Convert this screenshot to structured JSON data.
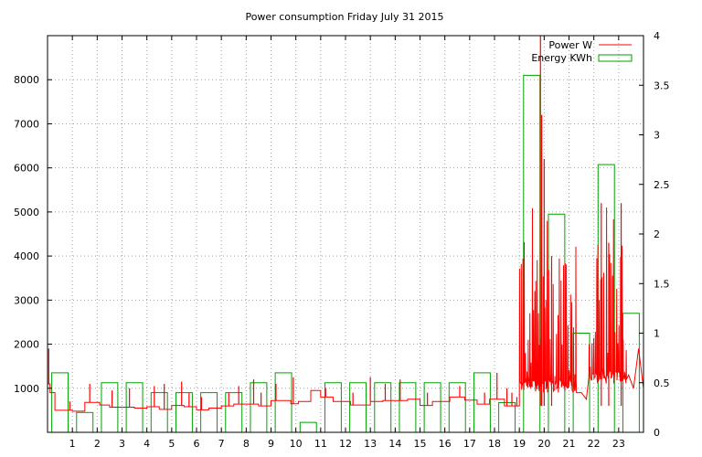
{
  "chart_data": {
    "type": "line",
    "title": "Power consumption Friday July 31 2015",
    "xlabel": "",
    "ylabel": "",
    "y2label": "",
    "xlim": [
      0,
      24
    ],
    "ylim": [
      0,
      9000
    ],
    "y2lim": [
      0,
      4
    ],
    "x_ticks": [
      1,
      2,
      3,
      4,
      5,
      6,
      7,
      8,
      9,
      10,
      11,
      12,
      13,
      14,
      15,
      16,
      17,
      18,
      19,
      20,
      21,
      22,
      23
    ],
    "y_ticks": [
      1000,
      2000,
      3000,
      4000,
      5000,
      6000,
      7000,
      8000
    ],
    "y2_ticks": [
      0,
      0.5,
      1,
      1.5,
      2,
      2.5,
      3,
      3.5,
      4
    ],
    "y2_tick_labels": [
      "0",
      "0.5",
      "1",
      "1.5",
      "2",
      "2.5",
      "3",
      "3.5",
      "4"
    ],
    "grid": true,
    "legend_position": "top-right",
    "colors": {
      "power": "#ff0000",
      "energy": "#00a000",
      "grid": "#a0a0a0",
      "axis": "#000000"
    },
    "series": [
      {
        "name": "Power W",
        "axis": "left",
        "style": "line",
        "baseline_steps": [
          [
            0.0,
            1100
          ],
          [
            0.1,
            900
          ],
          [
            0.3,
            500
          ],
          [
            1.0,
            480
          ],
          [
            1.5,
            680
          ],
          [
            2.1,
            620
          ],
          [
            2.5,
            570
          ],
          [
            3.5,
            550
          ],
          [
            4.0,
            580
          ],
          [
            4.5,
            520
          ],
          [
            5.0,
            610
          ],
          [
            5.5,
            580
          ],
          [
            6.0,
            510
          ],
          [
            6.5,
            550
          ],
          [
            7.0,
            600
          ],
          [
            7.5,
            640
          ],
          [
            8.5,
            600
          ],
          [
            9.0,
            720
          ],
          [
            9.8,
            650
          ],
          [
            10.1,
            700
          ],
          [
            10.6,
            950
          ],
          [
            11.0,
            800
          ],
          [
            11.5,
            700
          ],
          [
            12.2,
            620
          ],
          [
            13.0,
            700
          ],
          [
            13.5,
            720
          ],
          [
            14.5,
            750
          ],
          [
            15.0,
            610
          ],
          [
            15.5,
            700
          ],
          [
            16.2,
            800
          ],
          [
            16.8,
            730
          ],
          [
            17.3,
            640
          ],
          [
            17.8,
            750
          ],
          [
            18.4,
            600
          ],
          [
            19.0,
            600
          ]
        ],
        "spikes": [
          [
            0.05,
            1900
          ],
          [
            0.9,
            700
          ],
          [
            1.7,
            1100
          ],
          [
            2.6,
            950
          ],
          [
            3.3,
            1000
          ],
          [
            4.3,
            1050
          ],
          [
            4.7,
            1100
          ],
          [
            5.4,
            1150
          ],
          [
            5.7,
            900
          ],
          [
            6.2,
            800
          ],
          [
            7.3,
            900
          ],
          [
            7.7,
            1050
          ],
          [
            8.3,
            1200
          ],
          [
            8.6,
            900
          ],
          [
            9.2,
            1100
          ],
          [
            9.9,
            1250
          ],
          [
            11.2,
            1000
          ],
          [
            12.3,
            900
          ],
          [
            13.0,
            1250
          ],
          [
            13.6,
            1100
          ],
          [
            14.2,
            1200
          ],
          [
            15.3,
            900
          ],
          [
            16.6,
            1050
          ],
          [
            17.6,
            900
          ],
          [
            18.1,
            1350
          ],
          [
            18.5,
            1000
          ],
          [
            18.7,
            900
          ],
          [
            18.9,
            800
          ]
        ],
        "burst_ranges": [
          [
            19.0,
            21.3,
            900,
            5200
          ],
          [
            21.8,
            23.3,
            1100,
            5200
          ]
        ],
        "peaks": [
          [
            19.85,
            9000
          ],
          [
            19.9,
            7200
          ],
          [
            20.0,
            6200
          ],
          [
            20.3,
            4000
          ],
          [
            22.3,
            5200
          ],
          [
            22.6,
            4300
          ],
          [
            23.1,
            5200
          ]
        ],
        "tail_steps": [
          [
            21.3,
            900
          ],
          [
            21.5,
            900
          ],
          [
            21.7,
            750
          ],
          [
            23.4,
            1300
          ],
          [
            23.6,
            1000
          ],
          [
            23.8,
            1900
          ],
          [
            24.0,
            1000
          ]
        ]
      },
      {
        "name": "Energy KWh",
        "axis": "right",
        "style": "hourly-boxes",
        "x": [
          0,
          1,
          2,
          3,
          4,
          5,
          6,
          7,
          8,
          9,
          10,
          11,
          12,
          13,
          14,
          15,
          16,
          17,
          18,
          19,
          20,
          21,
          22,
          23
        ],
        "values": [
          0.6,
          0.2,
          0.5,
          0.5,
          0.4,
          0.4,
          0.4,
          0.4,
          0.5,
          0.6,
          0.1,
          0.5,
          0.5,
          0.5,
          0.5,
          0.5,
          0.5,
          0.6,
          0.3,
          3.6,
          2.2,
          1.0,
          2.7,
          1.2
        ]
      }
    ]
  }
}
